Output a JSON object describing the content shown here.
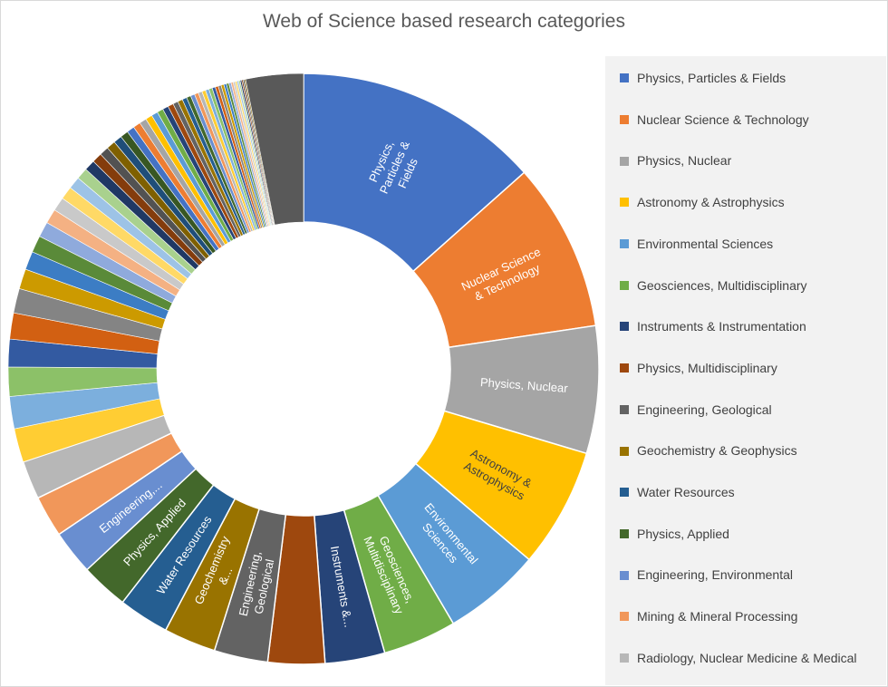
{
  "chart_data": {
    "type": "pie",
    "title": "Web of Science based research categories",
    "legend_position": "right",
    "slices": [
      {
        "name": "Physics, Particles & Fields",
        "value": 16.0,
        "color": "#4472C4",
        "label": "Physics, Particles & Fields",
        "label_color": "#ffffff"
      },
      {
        "name": "Nuclear Science & Technology",
        "value": 11.0,
        "color": "#ED7D31",
        "label": "Nuclear Science & Technology",
        "label_color": "#ffffff"
      },
      {
        "name": "Physics, Nuclear",
        "value": 8.3,
        "color": "#A5A5A5",
        "label": "Physics, Nuclear",
        "label_color": "#ffffff"
      },
      {
        "name": "Astronomy & Astrophysics",
        "value": 7.8,
        "color": "#FFC000",
        "label": "Astronomy & Astrophysics",
        "label_color": "#404040"
      },
      {
        "name": "Environmental Sciences",
        "value": 6.4,
        "color": "#5B9BD5",
        "label": "Environmental Sciences",
        "label_color": "#ffffff"
      },
      {
        "name": "Geosciences, Multidisciplinary",
        "value": 4.8,
        "color": "#70AD47",
        "label": "Geosciences, Multidisciplinary",
        "label_color": "#ffffff"
      },
      {
        "name": "Instruments & Instrumentation",
        "value": 3.9,
        "color": "#264478",
        "label": "Instruments &...",
        "label_color": "#ffffff"
      },
      {
        "name": "Physics, Multidisciplinary",
        "value": 3.7,
        "color": "#9E480E",
        "label": "",
        "label_color": "#ffffff"
      },
      {
        "name": "Engineering, Geological",
        "value": 3.5,
        "color": "#636363",
        "label": "Engineering, Geological",
        "label_color": "#ffffff"
      },
      {
        "name": "Geochemistry & Geophysics",
        "value": 3.4,
        "color": "#997300",
        "label": "Geochemistry &...",
        "label_color": "#ffffff"
      },
      {
        "name": "Water Resources",
        "value": 3.3,
        "color": "#255E91",
        "label": "Water Resources",
        "label_color": "#ffffff"
      },
      {
        "name": "Physics, Applied",
        "value": 3.1,
        "color": "#43682B",
        "label": "Physics, Applied",
        "label_color": "#ffffff"
      },
      {
        "name": "Engineering, Environmental",
        "value": 2.9,
        "color": "#698ED0",
        "label": "Engineering,...",
        "label_color": "#ffffff"
      },
      {
        "name": "Mining & Mineral Processing",
        "value": 2.7,
        "color": "#F1975A",
        "label": "",
        "label_color": "#ffffff"
      },
      {
        "name": "Radiology, Nuclear Medicine & Medical",
        "value": 2.5,
        "color": "#B7B7B7",
        "label": "",
        "label_color": "#ffffff"
      },
      {
        "name": "",
        "value": 2.2,
        "color": "#FFCD33",
        "label": "",
        "label_color": "#ffffff"
      },
      {
        "name": "",
        "value": 2.1,
        "color": "#7CAFDD",
        "label": "",
        "label_color": "#ffffff"
      },
      {
        "name": "",
        "value": 1.9,
        "color": "#8CC168",
        "label": "",
        "label_color": "#ffffff"
      },
      {
        "name": "",
        "value": 1.8,
        "color": "#335AA1",
        "label": "",
        "label_color": "#ffffff"
      },
      {
        "name": "",
        "value": 1.7,
        "color": "#D26012",
        "label": "",
        "label_color": "#ffffff"
      },
      {
        "name": "",
        "value": 1.6,
        "color": "#848484",
        "label": "",
        "label_color": "#ffffff"
      },
      {
        "name": "",
        "value": 1.3,
        "color": "#CC9A00",
        "label": "",
        "label_color": "#ffffff"
      },
      {
        "name": "",
        "value": 1.2,
        "color": "#3C7DC4",
        "label": "",
        "label_color": "#ffffff"
      },
      {
        "name": "",
        "value": 1.1,
        "color": "#5A8A39",
        "label": "",
        "label_color": "#ffffff"
      },
      {
        "name": "",
        "value": 1.0,
        "color": "#8FAADC",
        "label": "",
        "label_color": "#ffffff"
      },
      {
        "name": "",
        "value": 0.95,
        "color": "#F4B183",
        "label": "",
        "label_color": "#ffffff"
      },
      {
        "name": "",
        "value": 0.9,
        "color": "#C9C9C9",
        "label": "",
        "label_color": "#ffffff"
      },
      {
        "name": "",
        "value": 0.85,
        "color": "#FFD966",
        "label": "",
        "label_color": "#ffffff"
      },
      {
        "name": "",
        "value": 0.8,
        "color": "#9DC3E6",
        "label": "",
        "label_color": "#ffffff"
      },
      {
        "name": "",
        "value": 0.75,
        "color": "#A9D18E",
        "label": "",
        "label_color": "#ffffff"
      },
      {
        "name": "",
        "value": 0.7,
        "color": "#203864",
        "label": "",
        "label_color": "#ffffff"
      },
      {
        "name": "",
        "value": 0.65,
        "color": "#843C0C",
        "label": "",
        "label_color": "#ffffff"
      },
      {
        "name": "",
        "value": 0.6,
        "color": "#525252",
        "label": "",
        "label_color": "#ffffff"
      },
      {
        "name": "",
        "value": 0.58,
        "color": "#7F6000",
        "label": "",
        "label_color": "#ffffff"
      },
      {
        "name": "",
        "value": 0.55,
        "color": "#1F4E79",
        "label": "",
        "label_color": "#ffffff"
      },
      {
        "name": "",
        "value": 0.52,
        "color": "#385723",
        "label": "",
        "label_color": "#ffffff"
      },
      {
        "name": "",
        "value": 0.5,
        "color": "#4472C4",
        "label": "",
        "label_color": "#ffffff"
      },
      {
        "name": "",
        "value": 0.48,
        "color": "#ED7D31",
        "label": "",
        "label_color": "#ffffff"
      },
      {
        "name": "",
        "value": 0.46,
        "color": "#A5A5A5",
        "label": "",
        "label_color": "#ffffff"
      },
      {
        "name": "",
        "value": 0.44,
        "color": "#FFC000",
        "label": "",
        "label_color": "#ffffff"
      },
      {
        "name": "",
        "value": 0.42,
        "color": "#5B9BD5",
        "label": "",
        "label_color": "#ffffff"
      },
      {
        "name": "",
        "value": 0.4,
        "color": "#70AD47",
        "label": "",
        "label_color": "#ffffff"
      },
      {
        "name": "",
        "value": 0.38,
        "color": "#264478",
        "label": "",
        "label_color": "#ffffff"
      },
      {
        "name": "",
        "value": 0.36,
        "color": "#9E480E",
        "label": "",
        "label_color": "#ffffff"
      },
      {
        "name": "",
        "value": 0.34,
        "color": "#636363",
        "label": "",
        "label_color": "#ffffff"
      },
      {
        "name": "",
        "value": 0.32,
        "color": "#997300",
        "label": "",
        "label_color": "#ffffff"
      },
      {
        "name": "",
        "value": 0.3,
        "color": "#255E91",
        "label": "",
        "label_color": "#ffffff"
      },
      {
        "name": "",
        "value": 0.28,
        "color": "#43682B",
        "label": "",
        "label_color": "#ffffff"
      },
      {
        "name": "",
        "value": 0.27,
        "color": "#698ED0",
        "label": "",
        "label_color": "#ffffff"
      },
      {
        "name": "",
        "value": 0.26,
        "color": "#F1975A",
        "label": "",
        "label_color": "#ffffff"
      },
      {
        "name": "",
        "value": 0.25,
        "color": "#B7B7B7",
        "label": "",
        "label_color": "#ffffff"
      },
      {
        "name": "",
        "value": 0.24,
        "color": "#FFCD33",
        "label": "",
        "label_color": "#ffffff"
      },
      {
        "name": "",
        "value": 0.23,
        "color": "#7CAFDD",
        "label": "",
        "label_color": "#ffffff"
      },
      {
        "name": "",
        "value": 0.22,
        "color": "#8CC168",
        "label": "",
        "label_color": "#ffffff"
      },
      {
        "name": "",
        "value": 0.21,
        "color": "#335AA1",
        "label": "",
        "label_color": "#ffffff"
      },
      {
        "name": "",
        "value": 0.2,
        "color": "#D26012",
        "label": "",
        "label_color": "#ffffff"
      },
      {
        "name": "",
        "value": 0.19,
        "color": "#848484",
        "label": "",
        "label_color": "#ffffff"
      },
      {
        "name": "",
        "value": 0.18,
        "color": "#CC9A00",
        "label": "",
        "label_color": "#ffffff"
      },
      {
        "name": "",
        "value": 0.17,
        "color": "#3C7DC4",
        "label": "",
        "label_color": "#ffffff"
      },
      {
        "name": "",
        "value": 0.16,
        "color": "#5A8A39",
        "label": "",
        "label_color": "#ffffff"
      },
      {
        "name": "",
        "value": 0.15,
        "color": "#8FAADC",
        "label": "",
        "label_color": "#ffffff"
      },
      {
        "name": "",
        "value": 0.14,
        "color": "#F4B183",
        "label": "",
        "label_color": "#ffffff"
      },
      {
        "name": "",
        "value": 0.13,
        "color": "#C9C9C9",
        "label": "",
        "label_color": "#ffffff"
      },
      {
        "name": "",
        "value": 0.12,
        "color": "#FFD966",
        "label": "",
        "label_color": "#ffffff"
      },
      {
        "name": "",
        "value": 0.11,
        "color": "#9DC3E6",
        "label": "",
        "label_color": "#ffffff"
      },
      {
        "name": "",
        "value": 0.1,
        "color": "#A9D18E",
        "label": "",
        "label_color": "#ffffff"
      },
      {
        "name": "",
        "value": 0.1,
        "color": "#203864",
        "label": "",
        "label_color": "#ffffff"
      },
      {
        "name": "",
        "value": 0.09,
        "color": "#843C0C",
        "label": "",
        "label_color": "#ffffff"
      },
      {
        "name": "",
        "value": 0.09,
        "color": "#525252",
        "label": "",
        "label_color": "#ffffff"
      },
      {
        "name": "",
        "value": 0.08,
        "color": "#7F6000",
        "label": "",
        "label_color": "#ffffff"
      },
      {
        "name": "",
        "value": 3.75,
        "color": "#595959",
        "label": "",
        "label_color": "#ffffff"
      }
    ],
    "legend_entries": [
      "Physics, Particles & Fields",
      "Nuclear Science & Technology",
      "Physics, Nuclear",
      "Astronomy & Astrophysics",
      "Environmental Sciences",
      "Geosciences, Multidisciplinary",
      "Instruments & Instrumentation",
      "Physics, Multidisciplinary",
      "Engineering, Geological",
      "Geochemistry & Geophysics",
      "Water Resources",
      "Physics, Applied",
      "Engineering, Environmental",
      "Mining & Mineral Processing",
      "Radiology, Nuclear Medicine & Medical"
    ]
  }
}
